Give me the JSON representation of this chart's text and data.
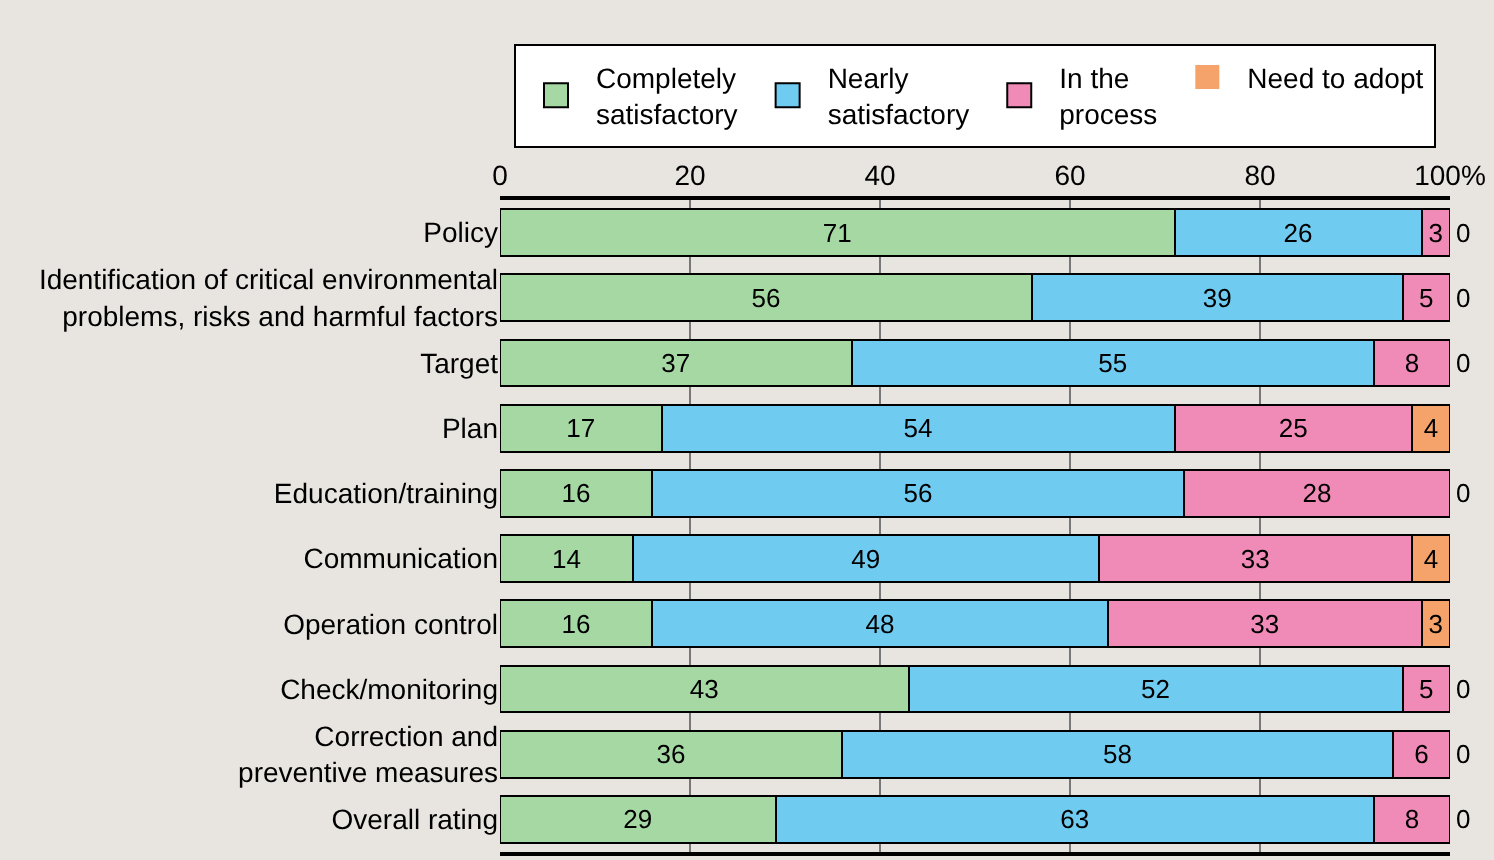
{
  "chart_data": {
    "type": "bar",
    "orientation": "horizontal",
    "stacked": true,
    "data_labels": true,
    "grid": "x",
    "legend": "top",
    "categories": [
      "Policy",
      "Identification of critical environmental problems, risks and harmful factors",
      "Target",
      "Plan",
      "Education/training",
      "Communication",
      "Operation control",
      "Check/monitoring",
      "Correction and preventive measures",
      "Overall rating"
    ],
    "series": [
      {
        "name": "Completely satisfactory",
        "color": "#a6d8a4",
        "values": [
          71,
          56,
          37,
          17,
          16,
          14,
          16,
          43,
          36,
          29
        ]
      },
      {
        "name": "Nearly satisfactory",
        "color": "#6fcbf0",
        "values": [
          26,
          39,
          55,
          54,
          56,
          49,
          48,
          52,
          58,
          63
        ]
      },
      {
        "name": "In the process",
        "color": "#f08ab6",
        "values": [
          3,
          5,
          8,
          25,
          28,
          33,
          33,
          5,
          6,
          8
        ]
      },
      {
        "name": "Need to adopt",
        "color": "#f5a36a",
        "values": [
          0,
          0,
          0,
          4,
          0,
          4,
          3,
          0,
          0,
          0
        ]
      }
    ],
    "xlim": [
      0,
      100
    ],
    "xticks": [
      0,
      20,
      40,
      60,
      80,
      {
        "value": 100,
        "label": "100%"
      }
    ]
  }
}
